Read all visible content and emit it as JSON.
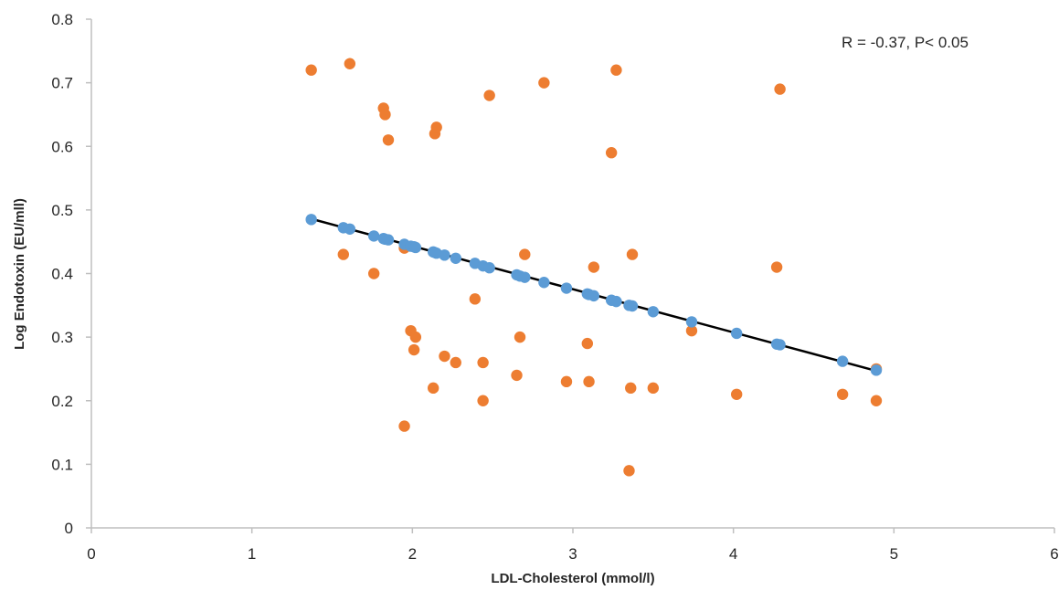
{
  "chart_data": {
    "type": "scatter",
    "title": "",
    "xlabel": "LDL-Cholesterol (mmol/l)",
    "ylabel": "Log Endotoxin (EU/mll)",
    "xlim": [
      0,
      6
    ],
    "ylim": [
      0,
      0.8
    ],
    "x_ticks": [
      "0",
      "1",
      "2",
      "3",
      "4",
      "5",
      "6"
    ],
    "y_ticks": [
      "0",
      "0.1",
      "0.2",
      "0.3",
      "0.4",
      "0.5",
      "0.6",
      "0.7",
      "0.8"
    ],
    "grid": false,
    "annotation": "R = -0.37, P< 0.05",
    "colors": {
      "observed": "#ed7d31",
      "fitted": "#5b9bd5",
      "trendline": "#000000",
      "axis": "#bfbfbf"
    },
    "series": [
      {
        "marker_color": "#ed7d31",
        "x": [
          1.37,
          1.61,
          1.82,
          1.83,
          1.85,
          2.14,
          2.15,
          2.48,
          2.82,
          3.24,
          3.27,
          4.29,
          1.57,
          1.76,
          1.95,
          2.7,
          3.37,
          3.13,
          4.27,
          2.39,
          1.99,
          2.02,
          2.01,
          2.2,
          2.27,
          2.44,
          2.67,
          3.09,
          1.95,
          2.13,
          2.44,
          2.65,
          2.96,
          3.1,
          3.36,
          3.5,
          4.02,
          4.68,
          4.89,
          3.74,
          4.89,
          3.35
        ],
        "y": [
          0.72,
          0.73,
          0.66,
          0.65,
          0.61,
          0.62,
          0.63,
          0.68,
          0.7,
          0.59,
          0.72,
          0.69,
          0.43,
          0.4,
          0.44,
          0.43,
          0.43,
          0.41,
          0.41,
          0.36,
          0.31,
          0.3,
          0.28,
          0.27,
          0.26,
          0.26,
          0.3,
          0.29,
          0.16,
          0.22,
          0.2,
          0.24,
          0.23,
          0.23,
          0.22,
          0.22,
          0.21,
          0.21,
          0.2,
          0.31,
          0.25,
          0.09
        ]
      },
      {
        "marker_color": "#5b9bd5",
        "x": [
          1.37,
          1.57,
          1.61,
          1.76,
          1.82,
          1.83,
          1.85,
          1.95,
          1.99,
          2.01,
          2.02,
          2.13,
          2.14,
          2.15,
          2.2,
          2.27,
          2.39,
          2.44,
          2.48,
          2.65,
          2.67,
          2.7,
          2.82,
          2.96,
          3.09,
          3.1,
          3.13,
          3.24,
          3.27,
          3.35,
          3.37,
          3.5,
          3.74,
          4.02,
          4.27,
          4.29,
          4.68,
          4.89
        ],
        "y": [
          0.485,
          0.472,
          0.47,
          0.459,
          0.455,
          0.454,
          0.453,
          0.446,
          0.443,
          0.442,
          0.441,
          0.434,
          0.433,
          0.432,
          0.429,
          0.424,
          0.416,
          0.412,
          0.409,
          0.398,
          0.396,
          0.394,
          0.386,
          0.377,
          0.368,
          0.367,
          0.365,
          0.358,
          0.356,
          0.35,
          0.349,
          0.34,
          0.324,
          0.306,
          0.289,
          0.288,
          0.262,
          0.248
        ]
      }
    ],
    "trendline": {
      "x": [
        1.37,
        4.89
      ],
      "y": [
        0.486,
        0.247
      ]
    }
  }
}
